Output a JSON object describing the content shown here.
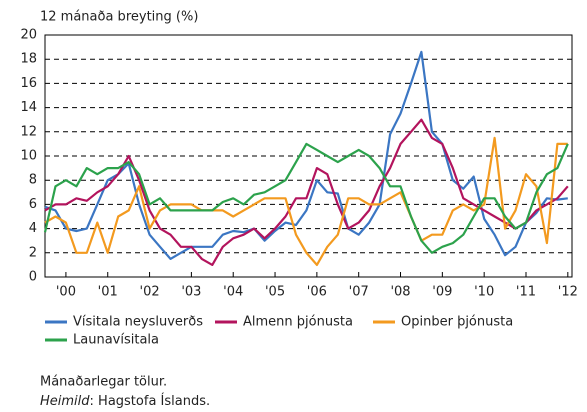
{
  "chart_data": {
    "type": "line",
    "y_label": "12 mánaða breyting (%)",
    "x": [
      2000,
      2000.25,
      2000.5,
      2000.75,
      2001,
      2001.25,
      2001.5,
      2001.75,
      2002,
      2002.25,
      2002.5,
      2002.75,
      2003,
      2003.25,
      2003.5,
      2003.75,
      2004,
      2004.25,
      2004.5,
      2004.75,
      2005,
      2005.25,
      2005.5,
      2005.75,
      2006,
      2006.25,
      2006.5,
      2006.75,
      2007,
      2007.25,
      2007.5,
      2007.75,
      2008,
      2008.25,
      2008.5,
      2008.75,
      2009,
      2009.25,
      2009.5,
      2009.75,
      2010,
      2010.25,
      2010.5,
      2010.75,
      2011,
      2011.25,
      2011.5,
      2011.75,
      2012,
      2012.25,
      2012.5
    ],
    "series": [
      {
        "name": "Vísitala neysluverðs",
        "color": "#3b76c3",
        "values": [
          5.8,
          5.5,
          4,
          3.8,
          4,
          6,
          8,
          8.5,
          9.4,
          6,
          3.5,
          2.5,
          1.5,
          2,
          2.5,
          2.5,
          2.5,
          3.5,
          3.8,
          3.7,
          4,
          3,
          3.8,
          4.5,
          4.3,
          5.5,
          8,
          7,
          6.9,
          4,
          3.5,
          4.5,
          6,
          11.8,
          13.5,
          16,
          18.6,
          12,
          11,
          8,
          7.3,
          8.3,
          4.8,
          3.5,
          1.8,
          2.5,
          4.5,
          5.3,
          6.5,
          6.4,
          6.5
        ]
      },
      {
        "name": "Almenn þjónusta",
        "color": "#b3145d",
        "values": [
          5.5,
          6,
          6,
          6.5,
          6.3,
          7,
          7.5,
          8.5,
          10,
          8,
          5.5,
          4,
          3.5,
          2.5,
          2.5,
          1.5,
          1,
          2.5,
          3.2,
          3.5,
          4,
          3.2,
          4,
          5,
          6.5,
          6.5,
          9,
          8.5,
          6,
          4,
          4.5,
          5.5,
          7.5,
          9,
          11,
          12,
          13,
          11.5,
          11,
          9,
          6.5,
          6,
          5.5,
          5,
          4.5,
          4,
          4.5,
          5.5,
          6,
          6.5,
          7.5
        ]
      },
      {
        "name": "Opinber þjónusta",
        "color": "#f39a1f",
        "values": [
          4.5,
          5,
          4.5,
          2,
          2,
          4.5,
          2,
          5,
          5.5,
          7.5,
          4,
          5.5,
          6,
          6,
          6,
          5.5,
          5.5,
          5.5,
          5,
          5.5,
          6,
          6.5,
          6.5,
          6.5,
          3.5,
          2,
          1,
          2.5,
          3.5,
          6.5,
          6.5,
          6,
          6,
          6.5,
          7,
          5,
          3,
          3.5,
          3.5,
          5.5,
          6,
          5.5,
          6,
          11.5,
          4,
          5.5,
          8.5,
          7.5,
          2.8,
          11,
          11
        ]
      },
      {
        "name": "Launavísitala",
        "color": "#2ca24c",
        "values": [
          3.7,
          7.5,
          8,
          7.5,
          9,
          8.5,
          9,
          9,
          9.5,
          8.5,
          6,
          6.5,
          5.5,
          5.5,
          5.5,
          5.5,
          5.5,
          6.2,
          6.5,
          6,
          6.8,
          7,
          7.5,
          8,
          9.5,
          11,
          10.5,
          10,
          9.5,
          10,
          10.5,
          10,
          9,
          7.5,
          7.5,
          5,
          3,
          2,
          2.5,
          2.8,
          3.5,
          5,
          6.5,
          6.5,
          5,
          4,
          4.5,
          7,
          8.5,
          9,
          11
        ]
      }
    ],
    "xlim": [
      2000,
      2012.6
    ],
    "xticks": [
      {
        "value": 2000.5,
        "label": "'00"
      },
      {
        "value": 2001.5,
        "label": "'01"
      },
      {
        "value": 2002.5,
        "label": "'02"
      },
      {
        "value": 2003.5,
        "label": "'03"
      },
      {
        "value": 2004.5,
        "label": "'04"
      },
      {
        "value": 2005.5,
        "label": "'05"
      },
      {
        "value": 2006.5,
        "label": "'06"
      },
      {
        "value": 2007.5,
        "label": "'07"
      },
      {
        "value": 2008.5,
        "label": "'08"
      },
      {
        "value": 2009.5,
        "label": "'09"
      },
      {
        "value": 2010.5,
        "label": "'10"
      },
      {
        "value": 2011.5,
        "label": "'11"
      },
      {
        "value": 2012.5,
        "label": "'12"
      }
    ],
    "ylim": [
      0,
      20
    ],
    "yticks": [
      0,
      2,
      4,
      6,
      8,
      10,
      12,
      14,
      16,
      18,
      20
    ],
    "grid": true,
    "note": "Mánaðarlegar tölur.",
    "source_label": "Heimild",
    "source_text": ": Hagstofa Íslands."
  }
}
